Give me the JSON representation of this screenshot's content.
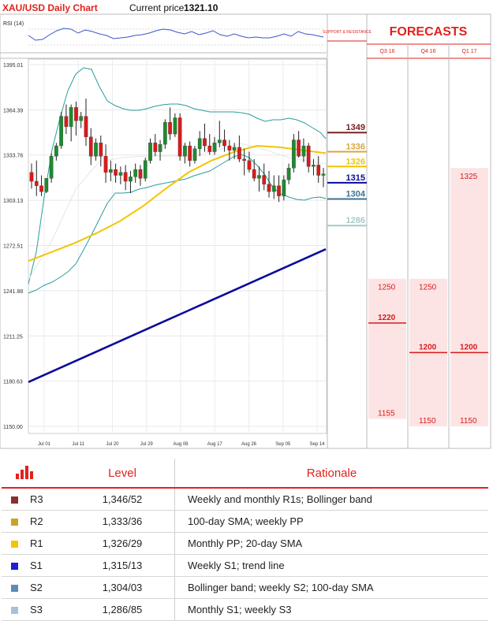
{
  "header": {
    "title": "XAU/USD Daily Chart",
    "price_label": "Current price",
    "price_value": "1321.10"
  },
  "rsi_label": "RSI (14)",
  "sr_header": "SUPPORT & RESISTANCE",
  "forecasts": {
    "title": "FORECASTS",
    "columns": [
      "Q3 16",
      "Q4 16",
      "Q1 17"
    ],
    "ranges": [
      {
        "column": "Q3 16",
        "top": 1250,
        "mid": 1220,
        "bottom": 1155
      },
      {
        "column": "Q4 16",
        "top": 1250,
        "mid": 1200,
        "bottom": 1150
      },
      {
        "column": "Q1 17",
        "top": 1325,
        "mid": 1200,
        "bottom": 1150
      }
    ],
    "labels": {
      "q3_top": "1250",
      "q3_mid": "1220",
      "q3_bottom": "1155",
      "q4_top": "1250",
      "q4_mid": "1200",
      "q4_bottom": "1150",
      "q1_top": "1325",
      "q1_mid": "1200",
      "q1_bottom": "1150"
    }
  },
  "levels_markers": [
    {
      "label": "1349",
      "value": 1349,
      "color": "#7b2020"
    },
    {
      "label": "1336",
      "value": 1336,
      "color": "#d9a640"
    },
    {
      "label": "1326",
      "value": 1326,
      "color": "#f2c500"
    },
    {
      "label": "1315",
      "value": 1315,
      "color": "#0a0a9c"
    },
    {
      "label": "1304",
      "value": 1304,
      "color": "#3f6f93"
    },
    {
      "label": "1286",
      "value": 1286,
      "color": "#a7c9c9"
    }
  ],
  "chart_data": {
    "type": "candlestick",
    "yticks": [
      "1395.01",
      "1364.39",
      "1333.76",
      "1303.13",
      "1272.51",
      "1241.88",
      "1211.25",
      "1180.63",
      "1150.00"
    ],
    "ylim": [
      1150.0,
      1395.01
    ],
    "xticks": [
      "Jul 01",
      "Jul 11",
      "Jul 20",
      "Jul 29",
      "Aug 08",
      "Aug 17",
      "Aug 26",
      "Sep 05",
      "Sep 14"
    ],
    "candles": [
      [
        1322,
        1328,
        1311,
        1316
      ],
      [
        1316,
        1330,
        1306,
        1313
      ],
      [
        1313,
        1320,
        1306,
        1309
      ],
      [
        1309,
        1318,
        1308,
        1318
      ],
      [
        1318,
        1335,
        1315,
        1333
      ],
      [
        1333,
        1342,
        1330,
        1340
      ],
      [
        1340,
        1363,
        1338,
        1360
      ],
      [
        1360,
        1368,
        1348,
        1353
      ],
      [
        1353,
        1368,
        1343,
        1366
      ],
      [
        1366,
        1370,
        1347,
        1357
      ],
      [
        1357,
        1363,
        1352,
        1360
      ],
      [
        1360,
        1372,
        1340,
        1346
      ],
      [
        1346,
        1352,
        1327,
        1333
      ],
      [
        1333,
        1345,
        1330,
        1342
      ],
      [
        1342,
        1347,
        1326,
        1333
      ],
      [
        1333,
        1341,
        1315,
        1322
      ],
      [
        1322,
        1330,
        1316,
        1324
      ],
      [
        1324,
        1328,
        1315,
        1320
      ],
      [
        1320,
        1326,
        1314,
        1322
      ],
      [
        1322,
        1327,
        1310,
        1316
      ],
      [
        1316,
        1323,
        1308,
        1319
      ],
      [
        1319,
        1328,
        1315,
        1324
      ],
      [
        1324,
        1327,
        1313,
        1318
      ],
      [
        1318,
        1332,
        1316,
        1330
      ],
      [
        1330,
        1345,
        1328,
        1342
      ],
      [
        1342,
        1348,
        1333,
        1336
      ],
      [
        1336,
        1344,
        1330,
        1341
      ],
      [
        1341,
        1358,
        1338,
        1356
      ],
      [
        1356,
        1366,
        1344,
        1348
      ],
      [
        1348,
        1362,
        1346,
        1359
      ],
      [
        1359,
        1362,
        1330,
        1333
      ],
      [
        1333,
        1342,
        1328,
        1340
      ],
      [
        1340,
        1343,
        1326,
        1330
      ],
      [
        1330,
        1340,
        1328,
        1338
      ],
      [
        1338,
        1350,
        1333,
        1345
      ],
      [
        1345,
        1355,
        1336,
        1340
      ],
      [
        1340,
        1348,
        1334,
        1336
      ],
      [
        1336,
        1346,
        1334,
        1342
      ],
      [
        1342,
        1357,
        1339,
        1344
      ],
      [
        1344,
        1351,
        1336,
        1340
      ],
      [
        1340,
        1344,
        1330,
        1337
      ],
      [
        1337,
        1342,
        1331,
        1339
      ],
      [
        1339,
        1347,
        1329,
        1331
      ],
      [
        1331,
        1338,
        1320,
        1330
      ],
      [
        1330,
        1336,
        1322,
        1324
      ],
      [
        1324,
        1331,
        1316,
        1318
      ],
      [
        1318,
        1326,
        1309,
        1320
      ],
      [
        1320,
        1328,
        1310,
        1314
      ],
      [
        1314,
        1323,
        1305,
        1309
      ],
      [
        1309,
        1320,
        1304,
        1313
      ],
      [
        1313,
        1320,
        1302,
        1306
      ],
      [
        1306,
        1320,
        1303,
        1317
      ],
      [
        1317,
        1328,
        1314,
        1325
      ],
      [
        1325,
        1348,
        1322,
        1344
      ],
      [
        1344,
        1350,
        1332,
        1333
      ],
      [
        1333,
        1345,
        1329,
        1340
      ],
      [
        1340,
        1342,
        1322,
        1326
      ],
      [
        1326,
        1331,
        1320,
        1327
      ],
      [
        1327,
        1333,
        1315,
        1320
      ],
      [
        1320,
        1325,
        1312,
        1321
      ]
    ],
    "series": [
      {
        "name": "",
        "color": "#0a0a9c",
        "kind": "100-day SMA",
        "values": [
          1180,
          1186,
          1192,
          1198,
          1204,
          1210,
          1216,
          1222,
          1228,
          1234,
          1240,
          1246,
          1252,
          1258,
          1264,
          1270
        ]
      },
      {
        "name": "",
        "color": "#f2c500",
        "kind": "20-day SMA",
        "values": [
          1262,
          1268,
          1274,
          1281,
          1289,
          1299,
          1311,
          1322,
          1330,
          1336,
          1340,
          1339,
          1337,
          1335
        ]
      }
    ]
  },
  "table": {
    "headers": [
      "Level",
      "Rationale"
    ],
    "rows": [
      {
        "code": "R3",
        "color": "#8b2e2e",
        "level": "1,346/52",
        "rationale": "Weekly and monthly R1s; Bollinger band"
      },
      {
        "code": "R2",
        "color": "#c9a227",
        "level": "1,333/36",
        "rationale": "100-day SMA; weekly PP"
      },
      {
        "code": "R1",
        "color": "#f2c500",
        "level": "1,326/29",
        "rationale": "Monthly PP; 20-day SMA"
      },
      {
        "code": "S1",
        "color": "#1f1fcf",
        "level": "1,315/13",
        "rationale": "Weekly S1; trend line"
      },
      {
        "code": "S2",
        "color": "#5d8db5",
        "level": "1,304/03",
        "rationale": "Bollinger band; weekly S2; 100-day SMA"
      },
      {
        "code": "S3",
        "color": "#a9c1d8",
        "level": "1,286/85",
        "rationale": "Monthly S1; weekly S3"
      }
    ]
  }
}
